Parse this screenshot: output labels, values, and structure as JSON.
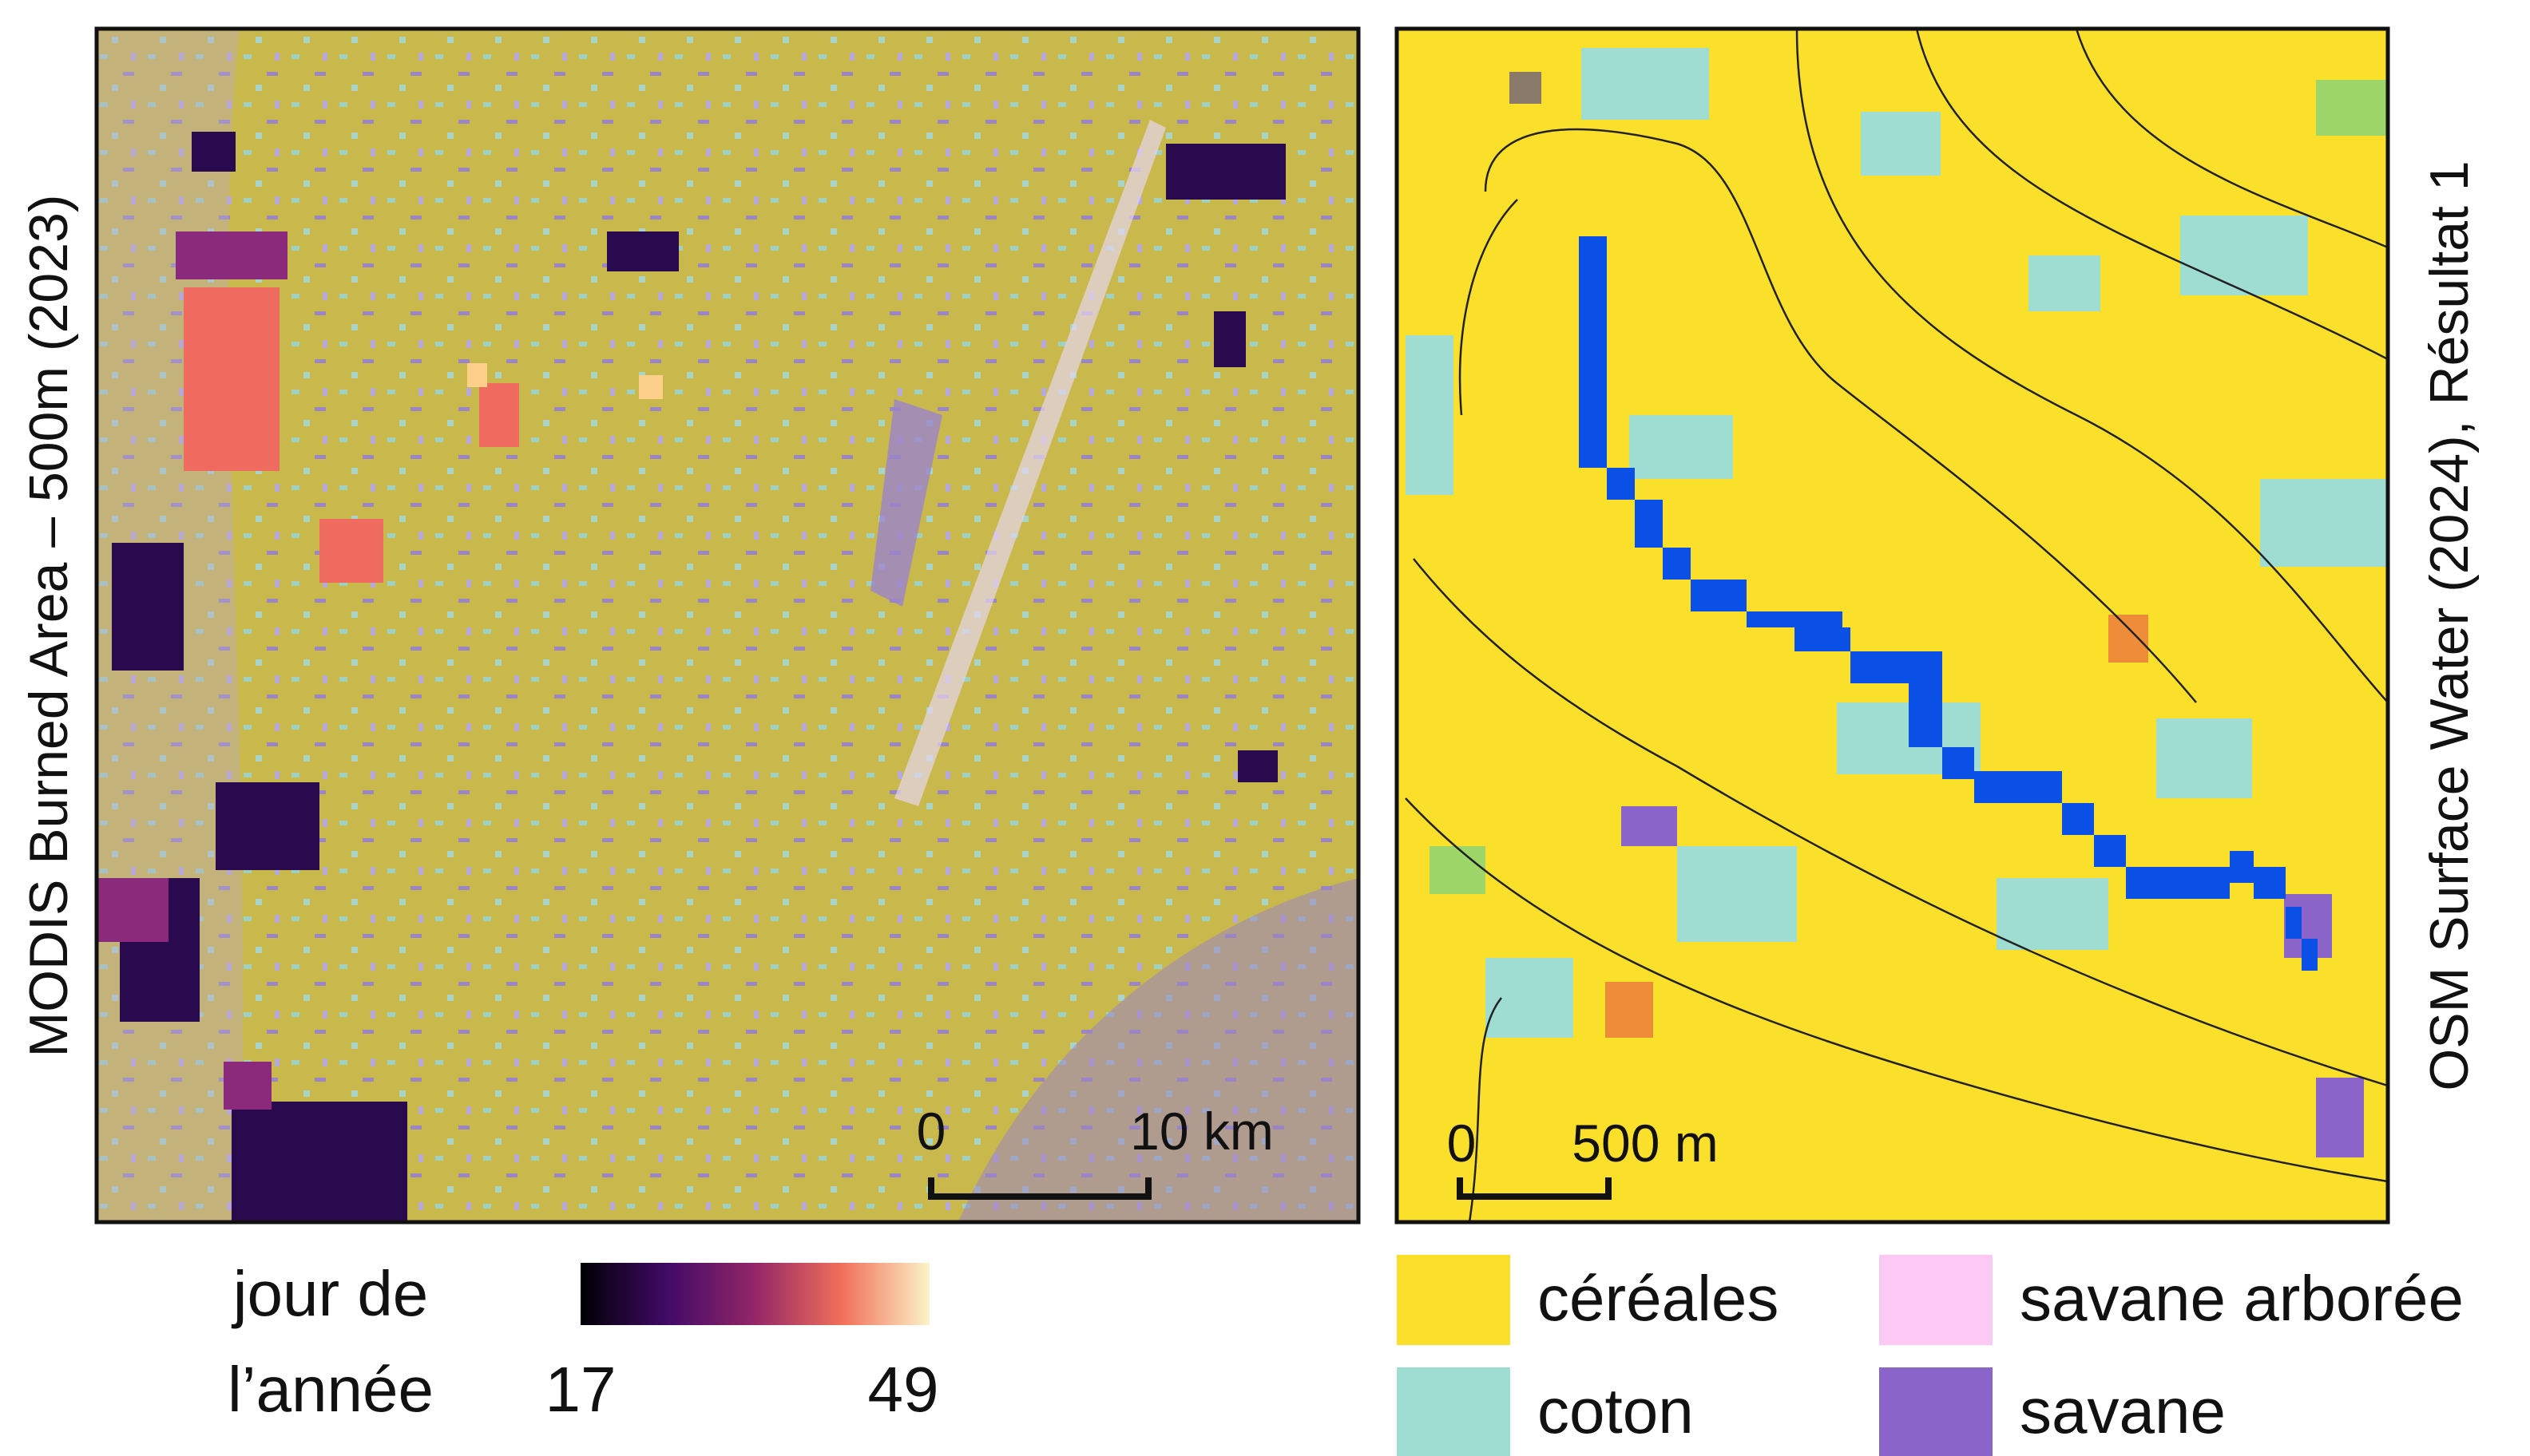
{
  "left_map": {
    "label": "MODIS Burned Area – 500m (2023)",
    "scale_zero": "0",
    "scale_text": "10 km"
  },
  "right_map": {
    "label": "OSM Surface Water (2024), Résultat 1",
    "scale_zero": "0",
    "scale_text": "500 m"
  },
  "colorbar": {
    "title_line1": "jour de",
    "title_line2": "l’année",
    "min": 17,
    "max": 49
  },
  "legend": [
    {
      "name": "céréales",
      "color": "#fbe02b"
    },
    {
      "name": "coton",
      "color": "#9fdcd2"
    },
    {
      "name": "savane arborée",
      "color": "#fbc9f3"
    },
    {
      "name": "savane",
      "color": "#8a64c8"
    }
  ]
}
